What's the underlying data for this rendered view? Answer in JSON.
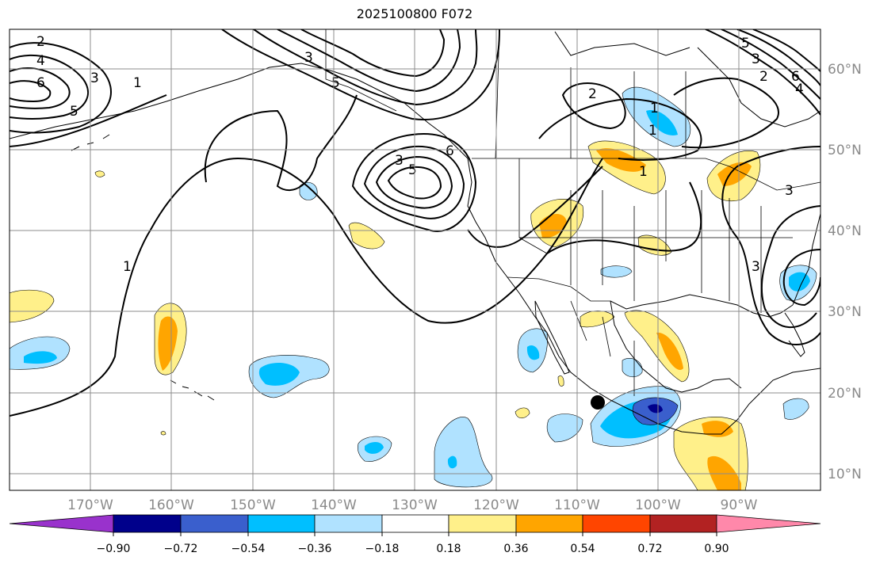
{
  "title": "2025100800 F072",
  "lat_labels": [
    "60°N",
    "50°N",
    "40°N",
    "30°N",
    "20°N",
    "10°N"
  ],
  "lon_labels": [
    "170°W",
    "160°W",
    "150°W",
    "140°W",
    "130°W",
    "120°W",
    "110°W",
    "100°W",
    "90°W"
  ],
  "colorbar": {
    "colors": [
      "#9932cc",
      "#00008b",
      "#3a5fcd",
      "#00bfff",
      "#b0e2ff",
      "#ffffff",
      "#fff08a",
      "#ffa500",
      "#ff4500",
      "#b22222",
      "#ff88aa"
    ],
    "tick_labels": [
      "−0.90",
      "−0.72",
      "−0.54",
      "−0.36",
      "−0.18",
      "0.18",
      "0.36",
      "0.54",
      "0.72",
      "0.90"
    ]
  },
  "contour_labels": [
    "2",
    "4",
    "6",
    "3",
    "5",
    "1",
    "1",
    "3",
    "5",
    "3",
    "5",
    "6",
    "2",
    "1",
    "1",
    "3",
    "5",
    "3",
    "6",
    "2",
    "4",
    "1",
    "3"
  ],
  "marker": "storm-center-dot"
}
